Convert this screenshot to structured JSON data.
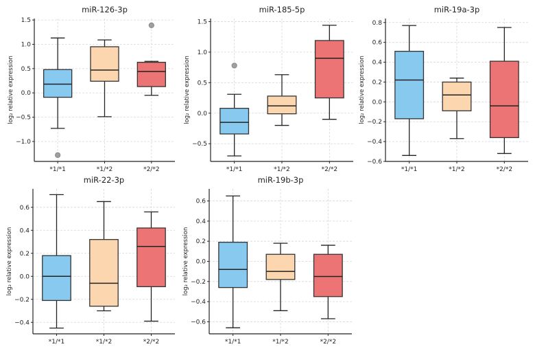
{
  "chart_data": [
    {
      "type": "box",
      "title": "miR-126-3p",
      "ylabel": "log₂ relative expression",
      "categories": [
        "*1/*1",
        "*1/*2",
        "*2/*2"
      ],
      "ylim": [
        -1.41,
        1.53
      ],
      "yticks": [
        -1.0,
        -0.5,
        0.0,
        0.5,
        1.0,
        1.5
      ],
      "grid": true,
      "boxes": [
        {
          "whislo": -0.73,
          "q1": -0.09,
          "med": 0.18,
          "q3": 0.48,
          "whishi": 1.13,
          "fliers": [
            -1.28
          ]
        },
        {
          "whislo": -0.49,
          "q1": 0.24,
          "med": 0.47,
          "q3": 0.95,
          "whishi": 1.09,
          "fliers": []
        },
        {
          "whislo": -0.05,
          "q1": 0.13,
          "med": 0.44,
          "q3": 0.63,
          "whishi": 0.65,
          "fliers": [
            1.39
          ]
        }
      ]
    },
    {
      "type": "box",
      "title": "miR-185-5p",
      "ylabel": "log₂ relative expression",
      "categories": [
        "*1/*1",
        "*1/*2",
        "*2/*2"
      ],
      "ylim": [
        -0.79,
        1.55
      ],
      "yticks": [
        -0.5,
        0.0,
        0.5,
        1.0,
        1.5
      ],
      "grid": true,
      "boxes": [
        {
          "whislo": -0.7,
          "q1": -0.34,
          "med": -0.15,
          "q3": 0.08,
          "whishi": 0.31,
          "fliers": [
            0.78
          ]
        },
        {
          "whislo": -0.2,
          "q1": -0.01,
          "med": 0.12,
          "q3": 0.28,
          "whishi": 0.63,
          "fliers": []
        },
        {
          "whislo": -0.1,
          "q1": 0.25,
          "med": 0.9,
          "q3": 1.19,
          "whishi": 1.44,
          "fliers": []
        }
      ]
    },
    {
      "type": "box",
      "title": "miR-19a-3p",
      "ylabel": "log₂ relative expression",
      "categories": [
        "*1/*1",
        "*1/*2",
        "*2/*2"
      ],
      "ylim": [
        -0.6,
        0.84
      ],
      "yticks": [
        -0.6,
        -0.4,
        -0.2,
        0.0,
        0.2,
        0.4,
        0.6,
        0.8
      ],
      "grid": true,
      "boxes": [
        {
          "whislo": -0.54,
          "q1": -0.17,
          "med": 0.22,
          "q3": 0.51,
          "whishi": 0.77,
          "fliers": []
        },
        {
          "whislo": -0.37,
          "q1": -0.09,
          "med": 0.07,
          "q3": 0.2,
          "whishi": 0.24,
          "fliers": []
        },
        {
          "whislo": -0.52,
          "q1": -0.36,
          "med": -0.04,
          "q3": 0.41,
          "whishi": 0.75,
          "fliers": []
        }
      ]
    },
    {
      "type": "box",
      "title": "miR-22-3p",
      "ylabel": "log₂ relative expression",
      "categories": [
        "*1/*1",
        "*1/*2",
        "*2/*2"
      ],
      "ylim": [
        -0.5,
        0.76
      ],
      "yticks": [
        -0.4,
        -0.2,
        0.0,
        0.2,
        0.4,
        0.6
      ],
      "grid": true,
      "boxes": [
        {
          "whislo": -0.45,
          "q1": -0.21,
          "med": 0.0,
          "q3": 0.18,
          "whishi": 0.71,
          "fliers": []
        },
        {
          "whislo": -0.3,
          "q1": -0.26,
          "med": -0.06,
          "q3": 0.32,
          "whishi": 0.65,
          "fliers": []
        },
        {
          "whislo": -0.39,
          "q1": -0.09,
          "med": 0.26,
          "q3": 0.42,
          "whishi": 0.56,
          "fliers": []
        }
      ]
    },
    {
      "type": "box",
      "title": "miR-19b-3p",
      "ylabel": "log₂ relative expression",
      "categories": [
        "*1/*1",
        "*1/*2",
        "*2/*2"
      ],
      "ylim": [
        -0.72,
        0.72
      ],
      "yticks": [
        -0.6,
        -0.4,
        -0.2,
        0.0,
        0.2,
        0.4,
        0.6
      ],
      "grid": true,
      "boxes": [
        {
          "whislo": -0.66,
          "q1": -0.26,
          "med": -0.08,
          "q3": 0.19,
          "whishi": 0.65,
          "fliers": []
        },
        {
          "whislo": -0.49,
          "q1": -0.18,
          "med": -0.1,
          "q3": 0.07,
          "whishi": 0.18,
          "fliers": []
        },
        {
          "whislo": -0.57,
          "q1": -0.35,
          "med": -0.15,
          "q3": 0.07,
          "whishi": 0.16,
          "fliers": []
        }
      ]
    }
  ],
  "colors": {
    "*1/*1": "#87c9ef",
    "*1/*2": "#fcd6ae",
    "*2/*2": "#ec7474",
    "flier": "#a0a0a0",
    "grid": "#d8d8d8"
  }
}
